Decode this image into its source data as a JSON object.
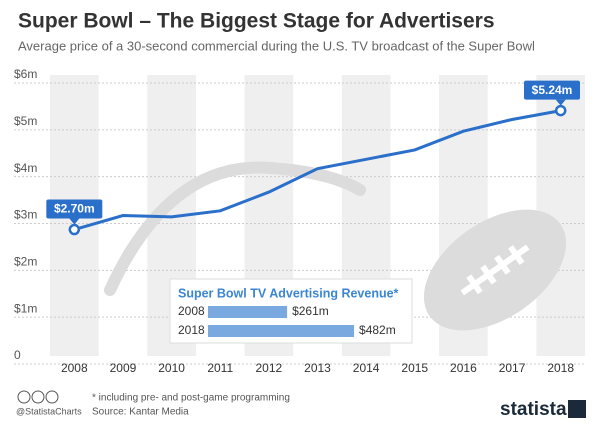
{
  "chart_data": [
    {
      "type": "line",
      "title": "Super Bowl – The Biggest Stage for Advertisers",
      "subtitle": "Average price of a 30-second commercial during the U.S. TV broadcast of the Super Bowl",
      "categories": [
        "2008",
        "2009",
        "2010",
        "2011",
        "2012",
        "2013",
        "2014",
        "2015",
        "2016",
        "2017",
        "2018"
      ],
      "values": [
        2.7,
        3.0,
        2.97,
        3.1,
        3.5,
        4.0,
        4.2,
        4.4,
        4.8,
        5.05,
        5.24
      ],
      "value_labels": [
        "$2.70m",
        null,
        null,
        null,
        null,
        null,
        null,
        null,
        null,
        null,
        "$5.24m"
      ],
      "color": "#2a6fc9",
      "ylim": [
        0,
        6
      ],
      "yticks": [
        0,
        {
          "value": 1,
          "label": "$1m"
        },
        {
          "value": 2,
          "label": "$2m"
        },
        {
          "value": 3,
          "label": "$3m"
        },
        {
          "value": 4,
          "label": "$4m"
        },
        {
          "value": 5,
          "label": "$5m"
        },
        {
          "value": 6,
          "label": "$6m"
        }
      ],
      "grid": true
    },
    {
      "type": "hbar",
      "title": "Super Bowl TV Advertising Revenue*",
      "categories": [
        "2008",
        "2018"
      ],
      "values": [
        261,
        482
      ],
      "value_labels": [
        "$261m",
        "$482m"
      ],
      "color": "#7aa9e0"
    }
  ],
  "footer": {
    "handle": "@StatistaCharts",
    "note": "* including pre- and post-game programming",
    "source": "Source: Kantar Media",
    "brand": "statista"
  }
}
